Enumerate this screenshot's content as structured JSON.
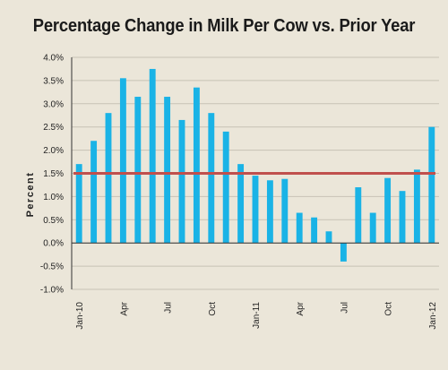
{
  "chart_data": {
    "type": "bar",
    "title": "Percentage Change in Milk Per Cow vs. Prior Year",
    "ylabel": "Percent",
    "xlabel": "",
    "ylim": [
      -1.0,
      4.0
    ],
    "yticks": [
      "4.0%",
      "3.5%",
      "3.0%",
      "2.5%",
      "2.0%",
      "1.5%",
      "1.0%",
      "0.5%",
      "0.0%",
      "-0.5%",
      "-1.0%"
    ],
    "ytick_values": [
      4.0,
      3.5,
      3.0,
      2.5,
      2.0,
      1.5,
      1.0,
      0.5,
      0.0,
      -0.5,
      -1.0
    ],
    "categories": [
      "Jan-10",
      "Feb-10",
      "Mar-10",
      "Apr-10",
      "May-10",
      "Jun-10",
      "Jul-10",
      "Aug-10",
      "Sep-10",
      "Oct-10",
      "Nov-10",
      "Dec-10",
      "Jan-11",
      "Feb-11",
      "Mar-11",
      "Apr-11",
      "May-11",
      "Jun-11",
      "Jul-11",
      "Aug-11",
      "Sep-11",
      "Oct-11",
      "Nov-11",
      "Dec-11",
      "Jan-12"
    ],
    "values": [
      1.7,
      2.2,
      2.8,
      3.55,
      3.15,
      3.75,
      3.15,
      2.65,
      3.35,
      2.8,
      2.4,
      1.7,
      1.45,
      1.35,
      1.38,
      0.65,
      0.55,
      0.25,
      -0.4,
      1.2,
      0.65,
      1.4,
      1.12,
      1.58,
      2.5
    ],
    "xtick_labels": [
      {
        "index": 0,
        "label": "Jan-10"
      },
      {
        "index": 3,
        "label": "Apr"
      },
      {
        "index": 6,
        "label": "Jul"
      },
      {
        "index": 9,
        "label": "Oct"
      },
      {
        "index": 12,
        "label": "Jan-11"
      },
      {
        "index": 15,
        "label": "Apr"
      },
      {
        "index": 18,
        "label": "Jul"
      },
      {
        "index": 21,
        "label": "Oct"
      },
      {
        "index": 24,
        "label": "Jan-12"
      }
    ],
    "reference_line": {
      "value": 1.5,
      "color": "#c0504d"
    },
    "bar_color": "#1ab3e6",
    "grid": true
  }
}
